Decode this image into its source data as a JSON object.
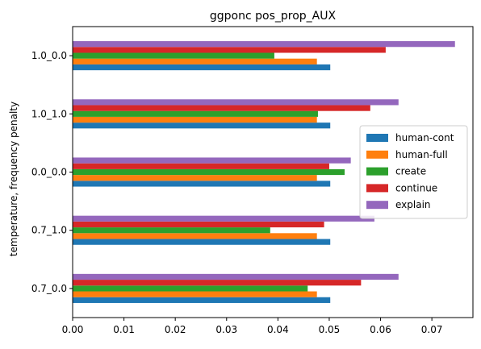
{
  "chart_data": {
    "type": "bar",
    "orientation": "horizontal",
    "title": "ggponc pos_prop_AUX",
    "xlabel": "",
    "ylabel": "temperature, frequency penalty",
    "categories": [
      "0.7_0.0",
      "0.7_1.0",
      "0.0_0.0",
      "1.0_1.0",
      "1.0_0.0"
    ],
    "xlim": [
      0,
      0.078
    ],
    "xticks": [
      "0.00",
      "0.01",
      "0.02",
      "0.03",
      "0.04",
      "0.05",
      "0.06",
      "0.07"
    ],
    "xtick_values": [
      0,
      0.01,
      0.02,
      0.03,
      0.04,
      0.05,
      0.06,
      0.07
    ],
    "legend_position": "center-right",
    "grid": false,
    "series": [
      {
        "name": "human-cont",
        "color": "#1f77b4",
        "values": [
          0.0502,
          0.0502,
          0.0502,
          0.0502,
          0.0502
        ]
      },
      {
        "name": "human-full",
        "color": "#ff7f0e",
        "values": [
          0.0476,
          0.0476,
          0.0476,
          0.0476,
          0.0476
        ]
      },
      {
        "name": "create",
        "color": "#2ca02c",
        "values": [
          0.0458,
          0.0385,
          0.053,
          0.0478,
          0.0393
        ]
      },
      {
        "name": "continue",
        "color": "#d62728",
        "values": [
          0.0562,
          0.049,
          0.05,
          0.058,
          0.061
        ]
      },
      {
        "name": "explain",
        "color": "#9467bd",
        "values": [
          0.0635,
          0.0588,
          0.0542,
          0.0635,
          0.0745
        ]
      }
    ]
  }
}
